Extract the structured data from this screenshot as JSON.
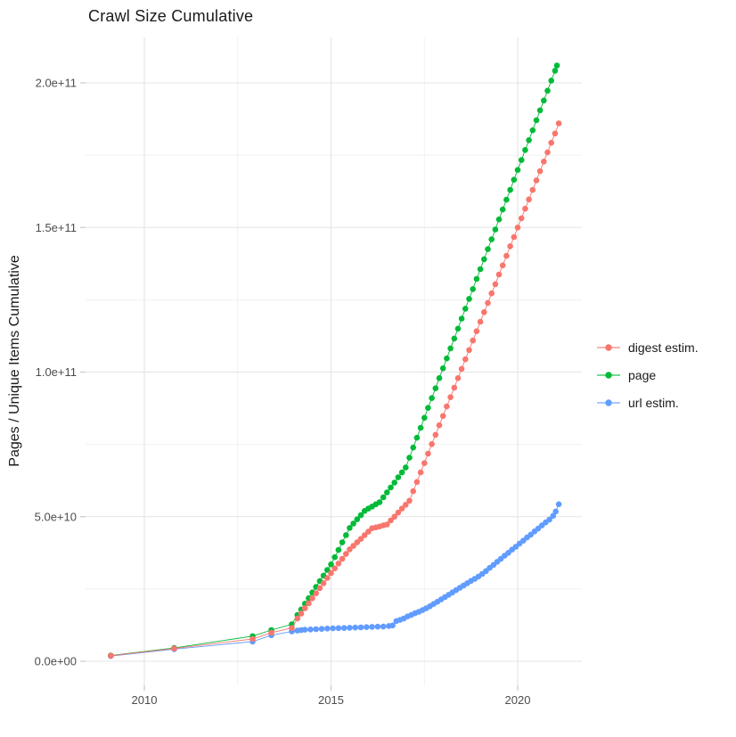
{
  "chart_data": {
    "type": "line",
    "title": "Crawl Size Cumulative",
    "xlabel": "",
    "ylabel": "Pages / Unique Items Cumulative",
    "grid": true,
    "legend_position": "right",
    "xlim": [
      2008.5,
      2021.7
    ],
    "ylim_e9": [
      -8.5,
      216.5
    ],
    "x_ticks": {
      "values": [
        2010,
        2015,
        2020
      ],
      "labels": [
        "2010",
        "2015",
        "2020"
      ],
      "minor": [
        2012.5,
        2017.5
      ]
    },
    "y_ticks": {
      "values_e9": [
        0,
        50,
        100,
        150,
        200
      ],
      "labels": [
        "0.0e+00",
        "5.0e+10",
        "1.0e+11",
        "1.5e+11",
        "2.0e+11"
      ],
      "minor_e9": [
        25,
        75,
        125,
        175
      ]
    },
    "unit_note": "point values given in billions (1e9) of pages / unique items, cumulative per crawl",
    "series": [
      {
        "name": "digest estim.",
        "color": "#F8766D",
        "points": [
          [
            2009.1,
            1.9
          ],
          [
            2010.8,
            4.4
          ],
          [
            2012.9,
            7.7
          ],
          [
            2013.4,
            9.9
          ],
          [
            2013.95,
            11.5
          ],
          [
            2014.1,
            14.8
          ],
          [
            2014.2,
            16.5
          ],
          [
            2014.3,
            18.3
          ],
          [
            2014.4,
            20.0
          ],
          [
            2014.5,
            21.8
          ],
          [
            2014.6,
            23.5
          ],
          [
            2014.7,
            25.3
          ],
          [
            2014.8,
            27.0
          ],
          [
            2014.9,
            28.8
          ],
          [
            2015.0,
            30.5
          ],
          [
            2015.1,
            32.1
          ],
          [
            2015.2,
            33.8
          ],
          [
            2015.3,
            35.4
          ],
          [
            2015.4,
            37.1
          ],
          [
            2015.5,
            38.7
          ],
          [
            2015.6,
            39.9
          ],
          [
            2015.7,
            41.1
          ],
          [
            2015.8,
            42.3
          ],
          [
            2015.9,
            43.6
          ],
          [
            2016.0,
            44.8
          ],
          [
            2016.1,
            46.0
          ],
          [
            2016.2,
            46.3
          ],
          [
            2016.3,
            46.6
          ],
          [
            2016.4,
            47.0
          ],
          [
            2016.5,
            47.3
          ],
          [
            2016.6,
            48.7
          ],
          [
            2016.7,
            50.0
          ],
          [
            2016.8,
            51.4
          ],
          [
            2016.9,
            52.8
          ],
          [
            2017.0,
            54.1
          ],
          [
            2017.1,
            55.5
          ],
          [
            2017.2,
            58.8
          ],
          [
            2017.3,
            62.0
          ],
          [
            2017.4,
            65.3
          ],
          [
            2017.5,
            68.5
          ],
          [
            2017.6,
            71.8
          ],
          [
            2017.7,
            75.1
          ],
          [
            2017.8,
            78.3
          ],
          [
            2017.9,
            81.6
          ],
          [
            2018.0,
            84.8
          ],
          [
            2018.1,
            88.1
          ],
          [
            2018.2,
            91.3
          ],
          [
            2018.3,
            94.6
          ],
          [
            2018.4,
            97.9
          ],
          [
            2018.5,
            101.1
          ],
          [
            2018.6,
            104.4
          ],
          [
            2018.7,
            107.6
          ],
          [
            2018.8,
            110.9
          ],
          [
            2018.9,
            114.1
          ],
          [
            2019.0,
            117.4
          ],
          [
            2019.1,
            120.7
          ],
          [
            2019.2,
            123.9
          ],
          [
            2019.3,
            127.2
          ],
          [
            2019.4,
            130.4
          ],
          [
            2019.5,
            133.7
          ],
          [
            2019.6,
            136.9
          ],
          [
            2019.7,
            140.2
          ],
          [
            2019.8,
            143.5
          ],
          [
            2019.9,
            146.7
          ],
          [
            2020.0,
            150.0
          ],
          [
            2020.1,
            153.2
          ],
          [
            2020.2,
            156.5
          ],
          [
            2020.3,
            159.7
          ],
          [
            2020.4,
            163.0
          ],
          [
            2020.5,
            166.3
          ],
          [
            2020.6,
            169.5
          ],
          [
            2020.7,
            172.8
          ],
          [
            2020.8,
            176.0
          ],
          [
            2020.9,
            179.3
          ],
          [
            2021.0,
            182.5
          ],
          [
            2021.1,
            186.0
          ]
        ]
      },
      {
        "name": "page",
        "color": "#00BA38",
        "points": [
          [
            2009.1,
            2.0
          ],
          [
            2010.8,
            4.6
          ],
          [
            2012.9,
            8.7
          ],
          [
            2013.4,
            10.8
          ],
          [
            2013.95,
            12.8
          ],
          [
            2014.1,
            16.0
          ],
          [
            2014.2,
            17.9
          ],
          [
            2014.3,
            19.9
          ],
          [
            2014.4,
            21.8
          ],
          [
            2014.5,
            23.8
          ],
          [
            2014.6,
            25.7
          ],
          [
            2014.7,
            27.7
          ],
          [
            2014.8,
            29.6
          ],
          [
            2014.9,
            31.6
          ],
          [
            2015.0,
            33.5
          ],
          [
            2015.1,
            36.0
          ],
          [
            2015.2,
            38.5
          ],
          [
            2015.3,
            41.1
          ],
          [
            2015.4,
            43.6
          ],
          [
            2015.5,
            46.1
          ],
          [
            2015.6,
            47.6
          ],
          [
            2015.7,
            49.1
          ],
          [
            2015.8,
            50.5
          ],
          [
            2015.9,
            52.0
          ],
          [
            2016.0,
            52.8
          ],
          [
            2016.1,
            53.5
          ],
          [
            2016.2,
            54.3
          ],
          [
            2016.3,
            55.0
          ],
          [
            2016.4,
            56.7
          ],
          [
            2016.5,
            58.4
          ],
          [
            2016.6,
            60.1
          ],
          [
            2016.7,
            61.8
          ],
          [
            2016.8,
            63.6
          ],
          [
            2016.9,
            65.3
          ],
          [
            2017.0,
            67.0
          ],
          [
            2017.1,
            70.4
          ],
          [
            2017.2,
            73.9
          ],
          [
            2017.3,
            77.3
          ],
          [
            2017.4,
            80.7
          ],
          [
            2017.5,
            84.2
          ],
          [
            2017.6,
            87.6
          ],
          [
            2017.7,
            91.0
          ],
          [
            2017.8,
            94.4
          ],
          [
            2017.9,
            97.9
          ],
          [
            2018.0,
            101.3
          ],
          [
            2018.1,
            104.7
          ],
          [
            2018.2,
            108.2
          ],
          [
            2018.3,
            111.6
          ],
          [
            2018.4,
            115.0
          ],
          [
            2018.5,
            118.5
          ],
          [
            2018.6,
            121.9
          ],
          [
            2018.7,
            125.3
          ],
          [
            2018.8,
            128.7
          ],
          [
            2018.9,
            132.2
          ],
          [
            2019.0,
            135.6
          ],
          [
            2019.1,
            139.0
          ],
          [
            2019.2,
            142.5
          ],
          [
            2019.3,
            145.9
          ],
          [
            2019.4,
            149.3
          ],
          [
            2019.5,
            152.8
          ],
          [
            2019.6,
            156.2
          ],
          [
            2019.7,
            159.6
          ],
          [
            2019.8,
            163.0
          ],
          [
            2019.9,
            166.5
          ],
          [
            2020.0,
            169.9
          ],
          [
            2020.1,
            173.3
          ],
          [
            2020.2,
            176.8
          ],
          [
            2020.3,
            180.2
          ],
          [
            2020.4,
            183.6
          ],
          [
            2020.5,
            187.1
          ],
          [
            2020.6,
            190.5
          ],
          [
            2020.7,
            193.9
          ],
          [
            2020.8,
            197.3
          ],
          [
            2020.9,
            200.8
          ],
          [
            2021.0,
            204.2
          ],
          [
            2021.05,
            206.0
          ]
        ]
      },
      {
        "name": "url estim.",
        "color": "#619CFF",
        "points": [
          [
            2009.1,
            1.8
          ],
          [
            2010.8,
            4.2
          ],
          [
            2012.9,
            6.8
          ],
          [
            2013.4,
            9.0
          ],
          [
            2013.95,
            10.3
          ],
          [
            2014.1,
            10.6
          ],
          [
            2014.2,
            10.8
          ],
          [
            2014.3,
            10.9
          ],
          [
            2014.45,
            11.0
          ],
          [
            2014.6,
            11.1
          ],
          [
            2014.75,
            11.2
          ],
          [
            2014.9,
            11.3
          ],
          [
            2015.05,
            11.4
          ],
          [
            2015.2,
            11.45
          ],
          [
            2015.35,
            11.5
          ],
          [
            2015.5,
            11.6
          ],
          [
            2015.65,
            11.65
          ],
          [
            2015.8,
            11.7
          ],
          [
            2015.95,
            11.8
          ],
          [
            2016.1,
            11.9
          ],
          [
            2016.25,
            11.95
          ],
          [
            2016.4,
            12.0
          ],
          [
            2016.55,
            12.2
          ],
          [
            2016.65,
            12.4
          ],
          [
            2016.75,
            13.9
          ],
          [
            2016.85,
            14.3
          ],
          [
            2016.95,
            14.8
          ],
          [
            2017.05,
            15.5
          ],
          [
            2017.15,
            16.0
          ],
          [
            2017.25,
            16.6
          ],
          [
            2017.35,
            17.1
          ],
          [
            2017.45,
            17.7
          ],
          [
            2017.55,
            18.3
          ],
          [
            2017.65,
            19.0
          ],
          [
            2017.75,
            19.8
          ],
          [
            2017.85,
            20.6
          ],
          [
            2017.95,
            21.4
          ],
          [
            2018.05,
            22.2
          ],
          [
            2018.15,
            23.0
          ],
          [
            2018.25,
            23.8
          ],
          [
            2018.35,
            24.6
          ],
          [
            2018.45,
            25.4
          ],
          [
            2018.55,
            26.2
          ],
          [
            2018.65,
            27.0
          ],
          [
            2018.75,
            27.8
          ],
          [
            2018.85,
            28.5
          ],
          [
            2018.95,
            29.3
          ],
          [
            2019.05,
            30.2
          ],
          [
            2019.15,
            31.2
          ],
          [
            2019.25,
            32.3
          ],
          [
            2019.35,
            33.3
          ],
          [
            2019.45,
            34.4
          ],
          [
            2019.55,
            35.4
          ],
          [
            2019.65,
            36.5
          ],
          [
            2019.75,
            37.5
          ],
          [
            2019.85,
            38.6
          ],
          [
            2019.95,
            39.6
          ],
          [
            2020.05,
            40.7
          ],
          [
            2020.15,
            41.7
          ],
          [
            2020.25,
            42.8
          ],
          [
            2020.35,
            43.8
          ],
          [
            2020.45,
            44.9
          ],
          [
            2020.55,
            45.9
          ],
          [
            2020.65,
            47.0
          ],
          [
            2020.75,
            48.0
          ],
          [
            2020.85,
            49.0
          ],
          [
            2020.95,
            50.3
          ],
          [
            2021.02,
            51.8
          ],
          [
            2021.1,
            54.3
          ]
        ]
      }
    ]
  },
  "colors": {
    "background": "#FFFFFF",
    "grid_major": "#E4E4E4",
    "grid_minor": "#F1F1F1",
    "tick_mark": "#C9C9C9",
    "axis_text": "#4D4D4D",
    "title_text": "#1A1A1A"
  }
}
